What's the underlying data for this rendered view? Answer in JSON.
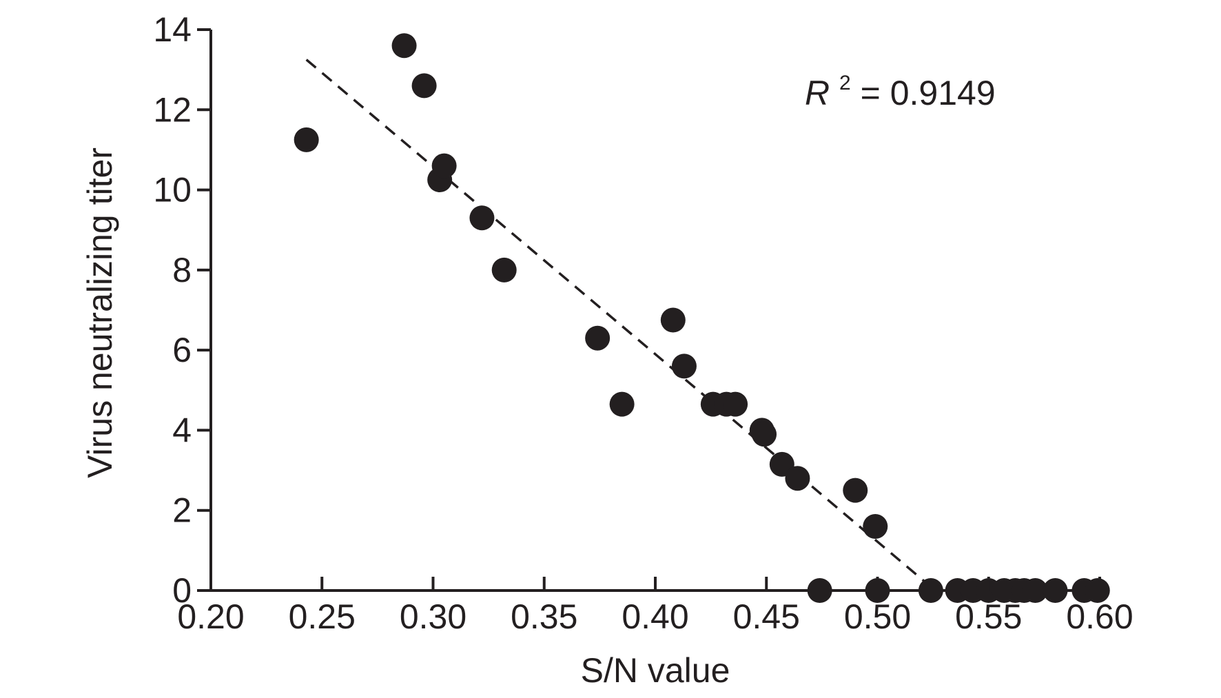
{
  "chart_data": {
    "type": "scatter",
    "title": "",
    "xlabel": "S/N value",
    "ylabel": "Virus neutralizing titer",
    "xlim": [
      0.2,
      0.6
    ],
    "ylim": [
      0,
      14
    ],
    "x_ticks": [
      "0.20",
      "0.25",
      "0.30",
      "0.35",
      "0.40",
      "0.45",
      "0.50",
      "0.55",
      "0.60"
    ],
    "y_ticks": [
      "0",
      "2",
      "4",
      "6",
      "8",
      "10",
      "12",
      "14"
    ],
    "grid": false,
    "legend": "none",
    "marker_color": "#231f20",
    "annotation": {
      "variable": "R",
      "exponent": "2",
      "equals_text": " = 0.9149"
    },
    "trendline": {
      "style": "dashed",
      "x": [
        0.243,
        0.526
      ],
      "y": [
        13.25,
        0.0
      ]
    },
    "series": [
      {
        "x": [
          0.243,
          0.287,
          0.296,
          0.303,
          0.305,
          0.322,
          0.332,
          0.374,
          0.385,
          0.408,
          0.413,
          0.426,
          0.432,
          0.436,
          0.448,
          0.449,
          0.457,
          0.464,
          0.474,
          0.49,
          0.499,
          0.5,
          0.524,
          0.536,
          0.543,
          0.55,
          0.557,
          0.562,
          0.566,
          0.571,
          0.58,
          0.593,
          0.599
        ],
        "y": [
          11.25,
          13.6,
          12.6,
          10.25,
          10.6,
          9.3,
          8.0,
          6.3,
          4.65,
          6.75,
          5.6,
          4.65,
          4.65,
          4.65,
          4.0,
          3.9,
          3.15,
          2.8,
          0,
          2.5,
          1.6,
          0,
          0,
          0,
          0,
          0,
          0,
          0,
          0,
          0,
          0,
          0,
          0
        ]
      }
    ]
  }
}
